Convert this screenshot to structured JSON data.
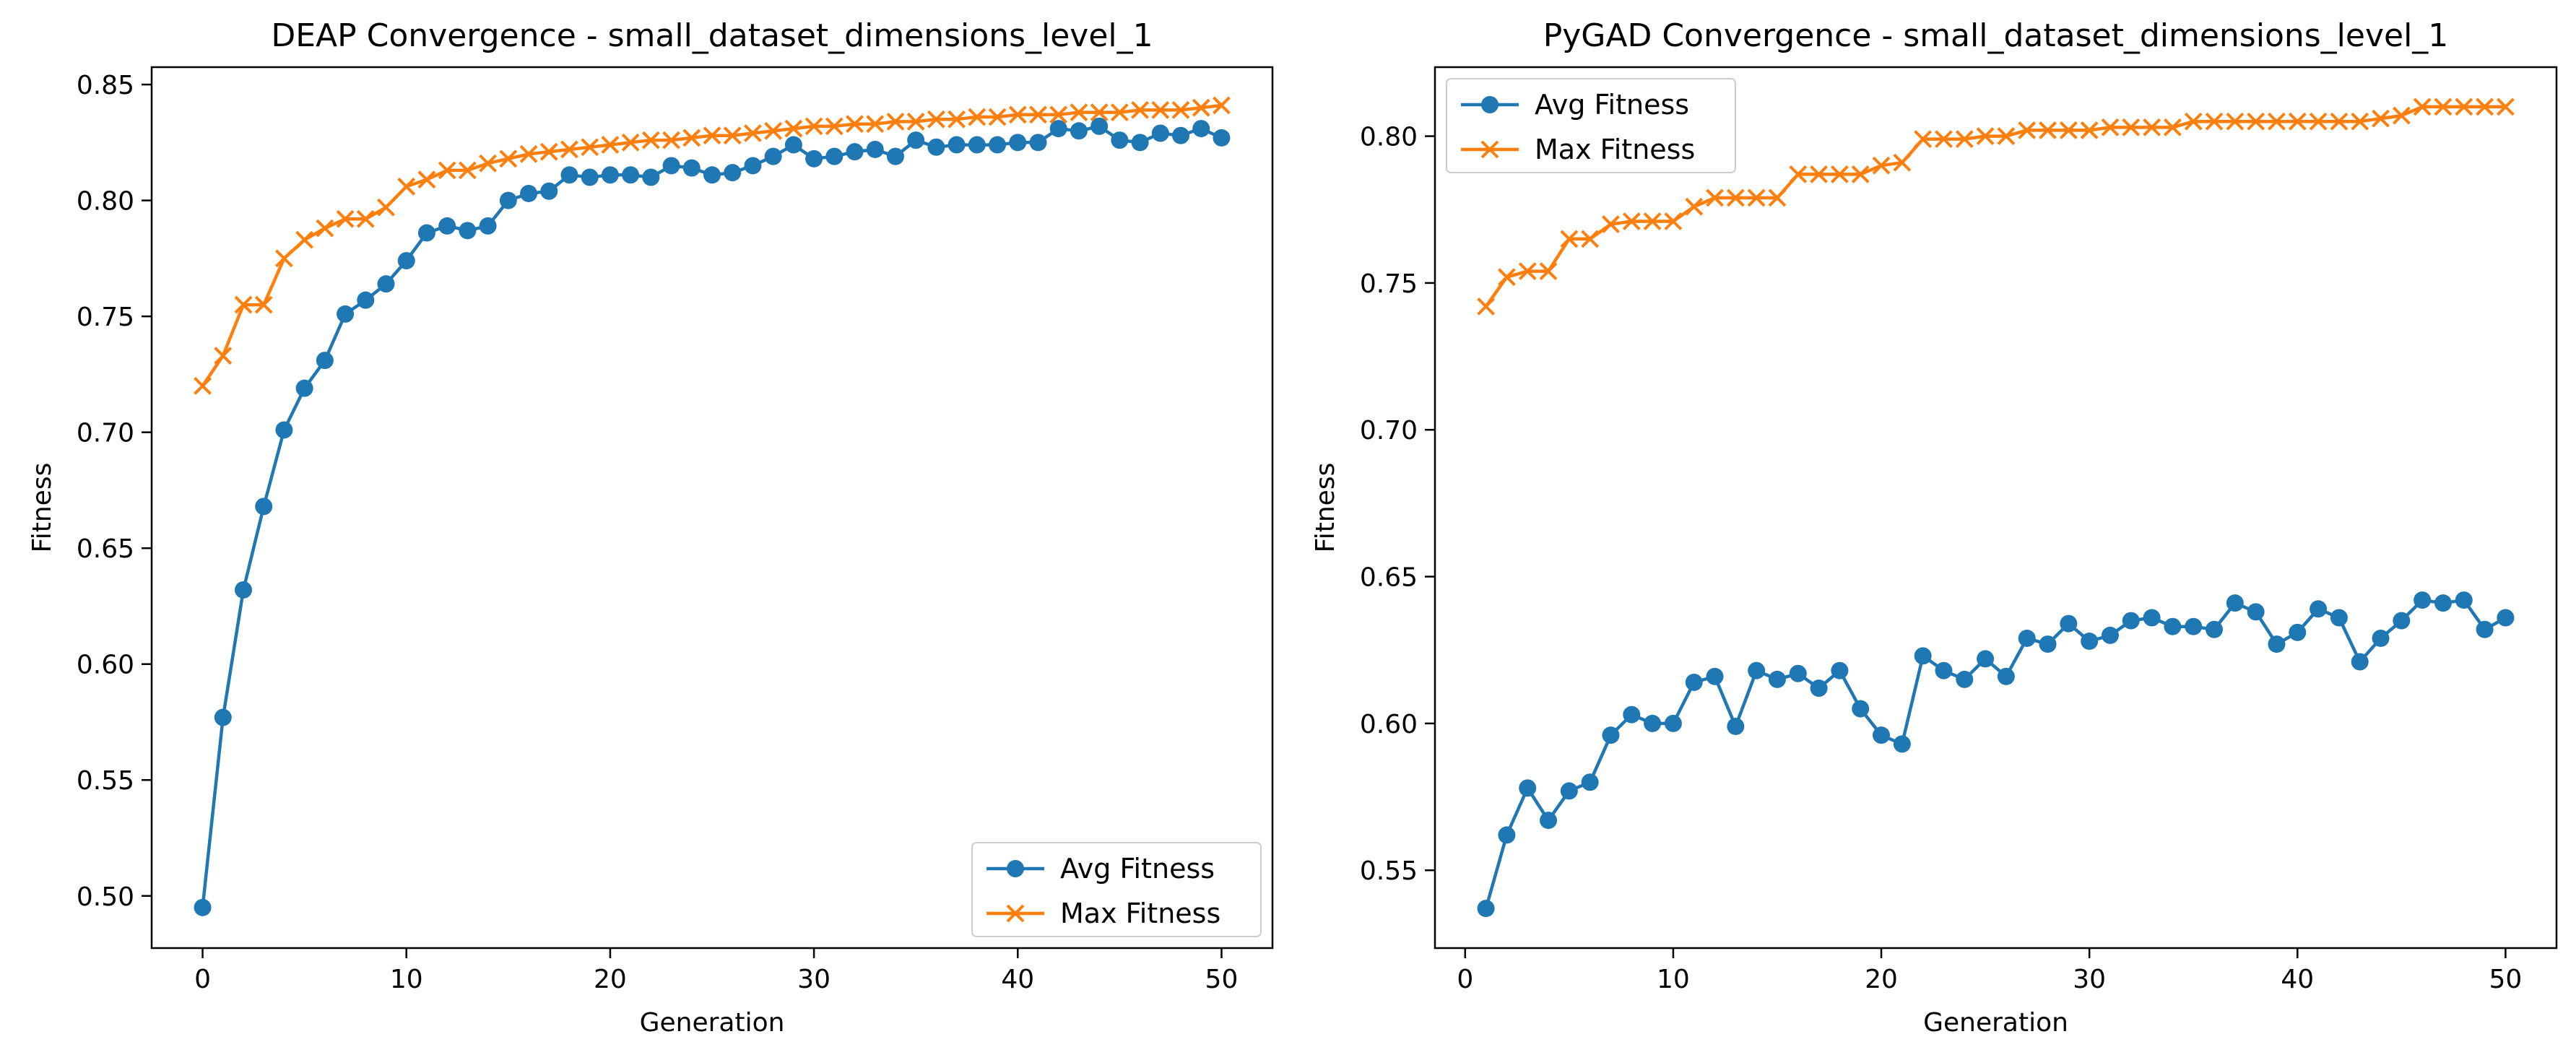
{
  "chart_data": [
    {
      "type": "line",
      "title": "DEAP Convergence - small_dataset_dimensions_level_1",
      "xlabel": "Generation",
      "ylabel": "Fitness",
      "xlim": [
        -2.5,
        52.5
      ],
      "ylim": [
        0.4775,
        0.8575
      ],
      "xticks": [
        0,
        10,
        20,
        30,
        40,
        50
      ],
      "xtick_labels": [
        "0",
        "10",
        "20",
        "30",
        "40",
        "50"
      ],
      "yticks": [
        0.5,
        0.55,
        0.6,
        0.65,
        0.7,
        0.75,
        0.8,
        0.85
      ],
      "ytick_labels": [
        "0.50",
        "0.55",
        "0.60",
        "0.65",
        "0.70",
        "0.75",
        "0.80",
        "0.85"
      ],
      "legend_position": "lower-right",
      "grid": false,
      "x": [
        0,
        1,
        2,
        3,
        4,
        5,
        6,
        7,
        8,
        9,
        10,
        11,
        12,
        13,
        14,
        15,
        16,
        17,
        18,
        19,
        20,
        21,
        22,
        23,
        24,
        25,
        26,
        27,
        28,
        29,
        30,
        31,
        32,
        33,
        34,
        35,
        36,
        37,
        38,
        39,
        40,
        41,
        42,
        43,
        44,
        45,
        46,
        47,
        48,
        49,
        50
      ],
      "series": [
        {
          "name": "Avg Fitness",
          "color": "#1f77b4",
          "marker": "circle",
          "values": [
            0.495,
            0.577,
            0.632,
            0.668,
            0.701,
            0.719,
            0.731,
            0.751,
            0.757,
            0.764,
            0.774,
            0.786,
            0.789,
            0.787,
            0.789,
            0.8,
            0.803,
            0.804,
            0.811,
            0.81,
            0.811,
            0.811,
            0.81,
            0.815,
            0.814,
            0.811,
            0.812,
            0.815,
            0.819,
            0.824,
            0.818,
            0.819,
            0.821,
            0.822,
            0.819,
            0.826,
            0.823,
            0.824,
            0.824,
            0.824,
            0.825,
            0.825,
            0.831,
            0.83,
            0.832,
            0.826,
            0.825,
            0.829,
            0.828,
            0.831,
            0.827
          ]
        },
        {
          "name": "Max Fitness",
          "color": "#ff7f0e",
          "marker": "x",
          "values": [
            0.72,
            0.733,
            0.755,
            0.755,
            0.775,
            0.783,
            0.788,
            0.792,
            0.792,
            0.797,
            0.806,
            0.809,
            0.813,
            0.813,
            0.816,
            0.818,
            0.82,
            0.821,
            0.822,
            0.823,
            0.824,
            0.825,
            0.826,
            0.826,
            0.827,
            0.828,
            0.828,
            0.829,
            0.83,
            0.831,
            0.832,
            0.832,
            0.833,
            0.833,
            0.834,
            0.834,
            0.835,
            0.835,
            0.836,
            0.836,
            0.837,
            0.837,
            0.837,
            0.838,
            0.838,
            0.838,
            0.839,
            0.839,
            0.839,
            0.84,
            0.841
          ]
        }
      ]
    },
    {
      "type": "line",
      "title": "PyGAD Convergence - small_dataset_dimensions_level_1",
      "xlabel": "Generation",
      "ylabel": "Fitness",
      "xlim": [
        -1.45,
        52.45
      ],
      "ylim": [
        0.5235,
        0.8235
      ],
      "xticks": [
        0,
        10,
        20,
        30,
        40,
        50
      ],
      "xtick_labels": [
        "0",
        "10",
        "20",
        "30",
        "40",
        "50"
      ],
      "yticks": [
        0.55,
        0.6,
        0.65,
        0.7,
        0.75,
        0.8
      ],
      "ytick_labels": [
        "0.55",
        "0.60",
        "0.65",
        "0.70",
        "0.75",
        "0.80"
      ],
      "legend_position": "upper-left",
      "grid": false,
      "x": [
        1,
        2,
        3,
        4,
        5,
        6,
        7,
        8,
        9,
        10,
        11,
        12,
        13,
        14,
        15,
        16,
        17,
        18,
        19,
        20,
        21,
        22,
        23,
        24,
        25,
        26,
        27,
        28,
        29,
        30,
        31,
        32,
        33,
        34,
        35,
        36,
        37,
        38,
        39,
        40,
        41,
        42,
        43,
        44,
        45,
        46,
        47,
        48,
        49,
        50
      ],
      "series": [
        {
          "name": "Avg Fitness",
          "color": "#1f77b4",
          "marker": "circle",
          "values": [
            0.537,
            0.562,
            0.578,
            0.567,
            0.577,
            0.58,
            0.596,
            0.603,
            0.6,
            0.6,
            0.614,
            0.616,
            0.599,
            0.618,
            0.615,
            0.617,
            0.612,
            0.618,
            0.605,
            0.596,
            0.593,
            0.623,
            0.618,
            0.615,
            0.622,
            0.616,
            0.629,
            0.627,
            0.634,
            0.628,
            0.63,
            0.635,
            0.636,
            0.633,
            0.633,
            0.632,
            0.641,
            0.638,
            0.627,
            0.631,
            0.639,
            0.636,
            0.621,
            0.629,
            0.635,
            0.642,
            0.641,
            0.642,
            0.632,
            0.636
          ]
        },
        {
          "name": "Max Fitness",
          "color": "#ff7f0e",
          "marker": "x",
          "values": [
            0.742,
            0.752,
            0.754,
            0.754,
            0.765,
            0.765,
            0.77,
            0.771,
            0.771,
            0.771,
            0.776,
            0.779,
            0.779,
            0.779,
            0.779,
            0.787,
            0.787,
            0.787,
            0.787,
            0.79,
            0.791,
            0.799,
            0.799,
            0.799,
            0.8,
            0.8,
            0.802,
            0.802,
            0.802,
            0.802,
            0.803,
            0.803,
            0.803,
            0.803,
            0.805,
            0.805,
            0.805,
            0.805,
            0.805,
            0.805,
            0.805,
            0.805,
            0.805,
            0.806,
            0.807,
            0.81,
            0.81,
            0.81,
            0.81,
            0.81
          ]
        }
      ]
    }
  ]
}
